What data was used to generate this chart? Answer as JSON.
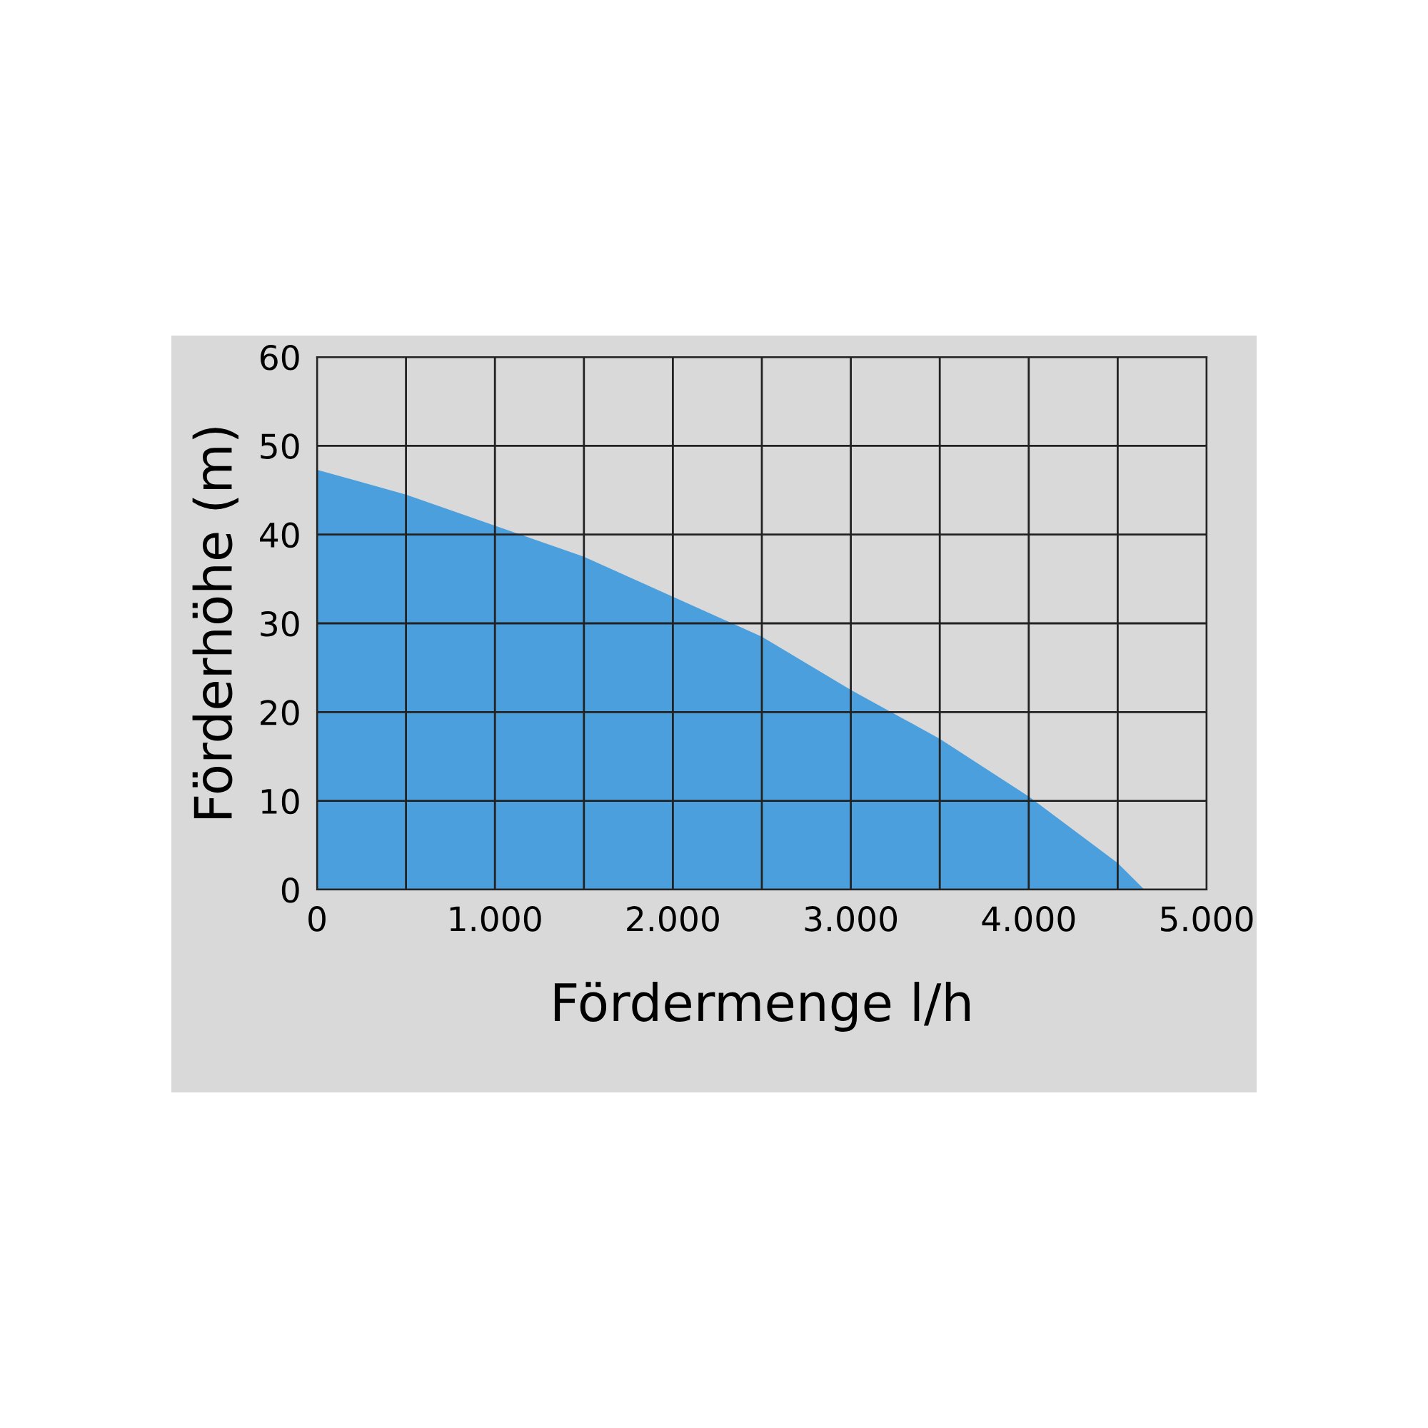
{
  "chart_data": {
    "type": "area",
    "xlabel": "Fördermenge l/h",
    "ylabel": "Förderhöhe (m)",
    "x": [
      0,
      500,
      1000,
      1500,
      2000,
      2500,
      3000,
      3500,
      4000,
      4500,
      4650
    ],
    "series": [
      {
        "color": "#4a9fdc",
        "values": [
          47.3,
          44.5,
          41,
          37.5,
          33,
          28.5,
          22.5,
          17,
          10.5,
          3,
          0
        ]
      }
    ],
    "xlim": [
      0,
      5000
    ],
    "ylim": [
      0,
      60
    ],
    "xticks": [
      0,
      {
        "value": 1000,
        "label": "1.000"
      },
      {
        "value": 2000,
        "label": "2.000"
      },
      {
        "value": 3000,
        "label": "3.000"
      },
      {
        "value": 4000,
        "label": "4.000"
      },
      {
        "value": 5000,
        "label": "5.000"
      }
    ],
    "yticks": [
      0,
      10,
      20,
      30,
      40,
      50,
      60
    ],
    "grid": true
  }
}
